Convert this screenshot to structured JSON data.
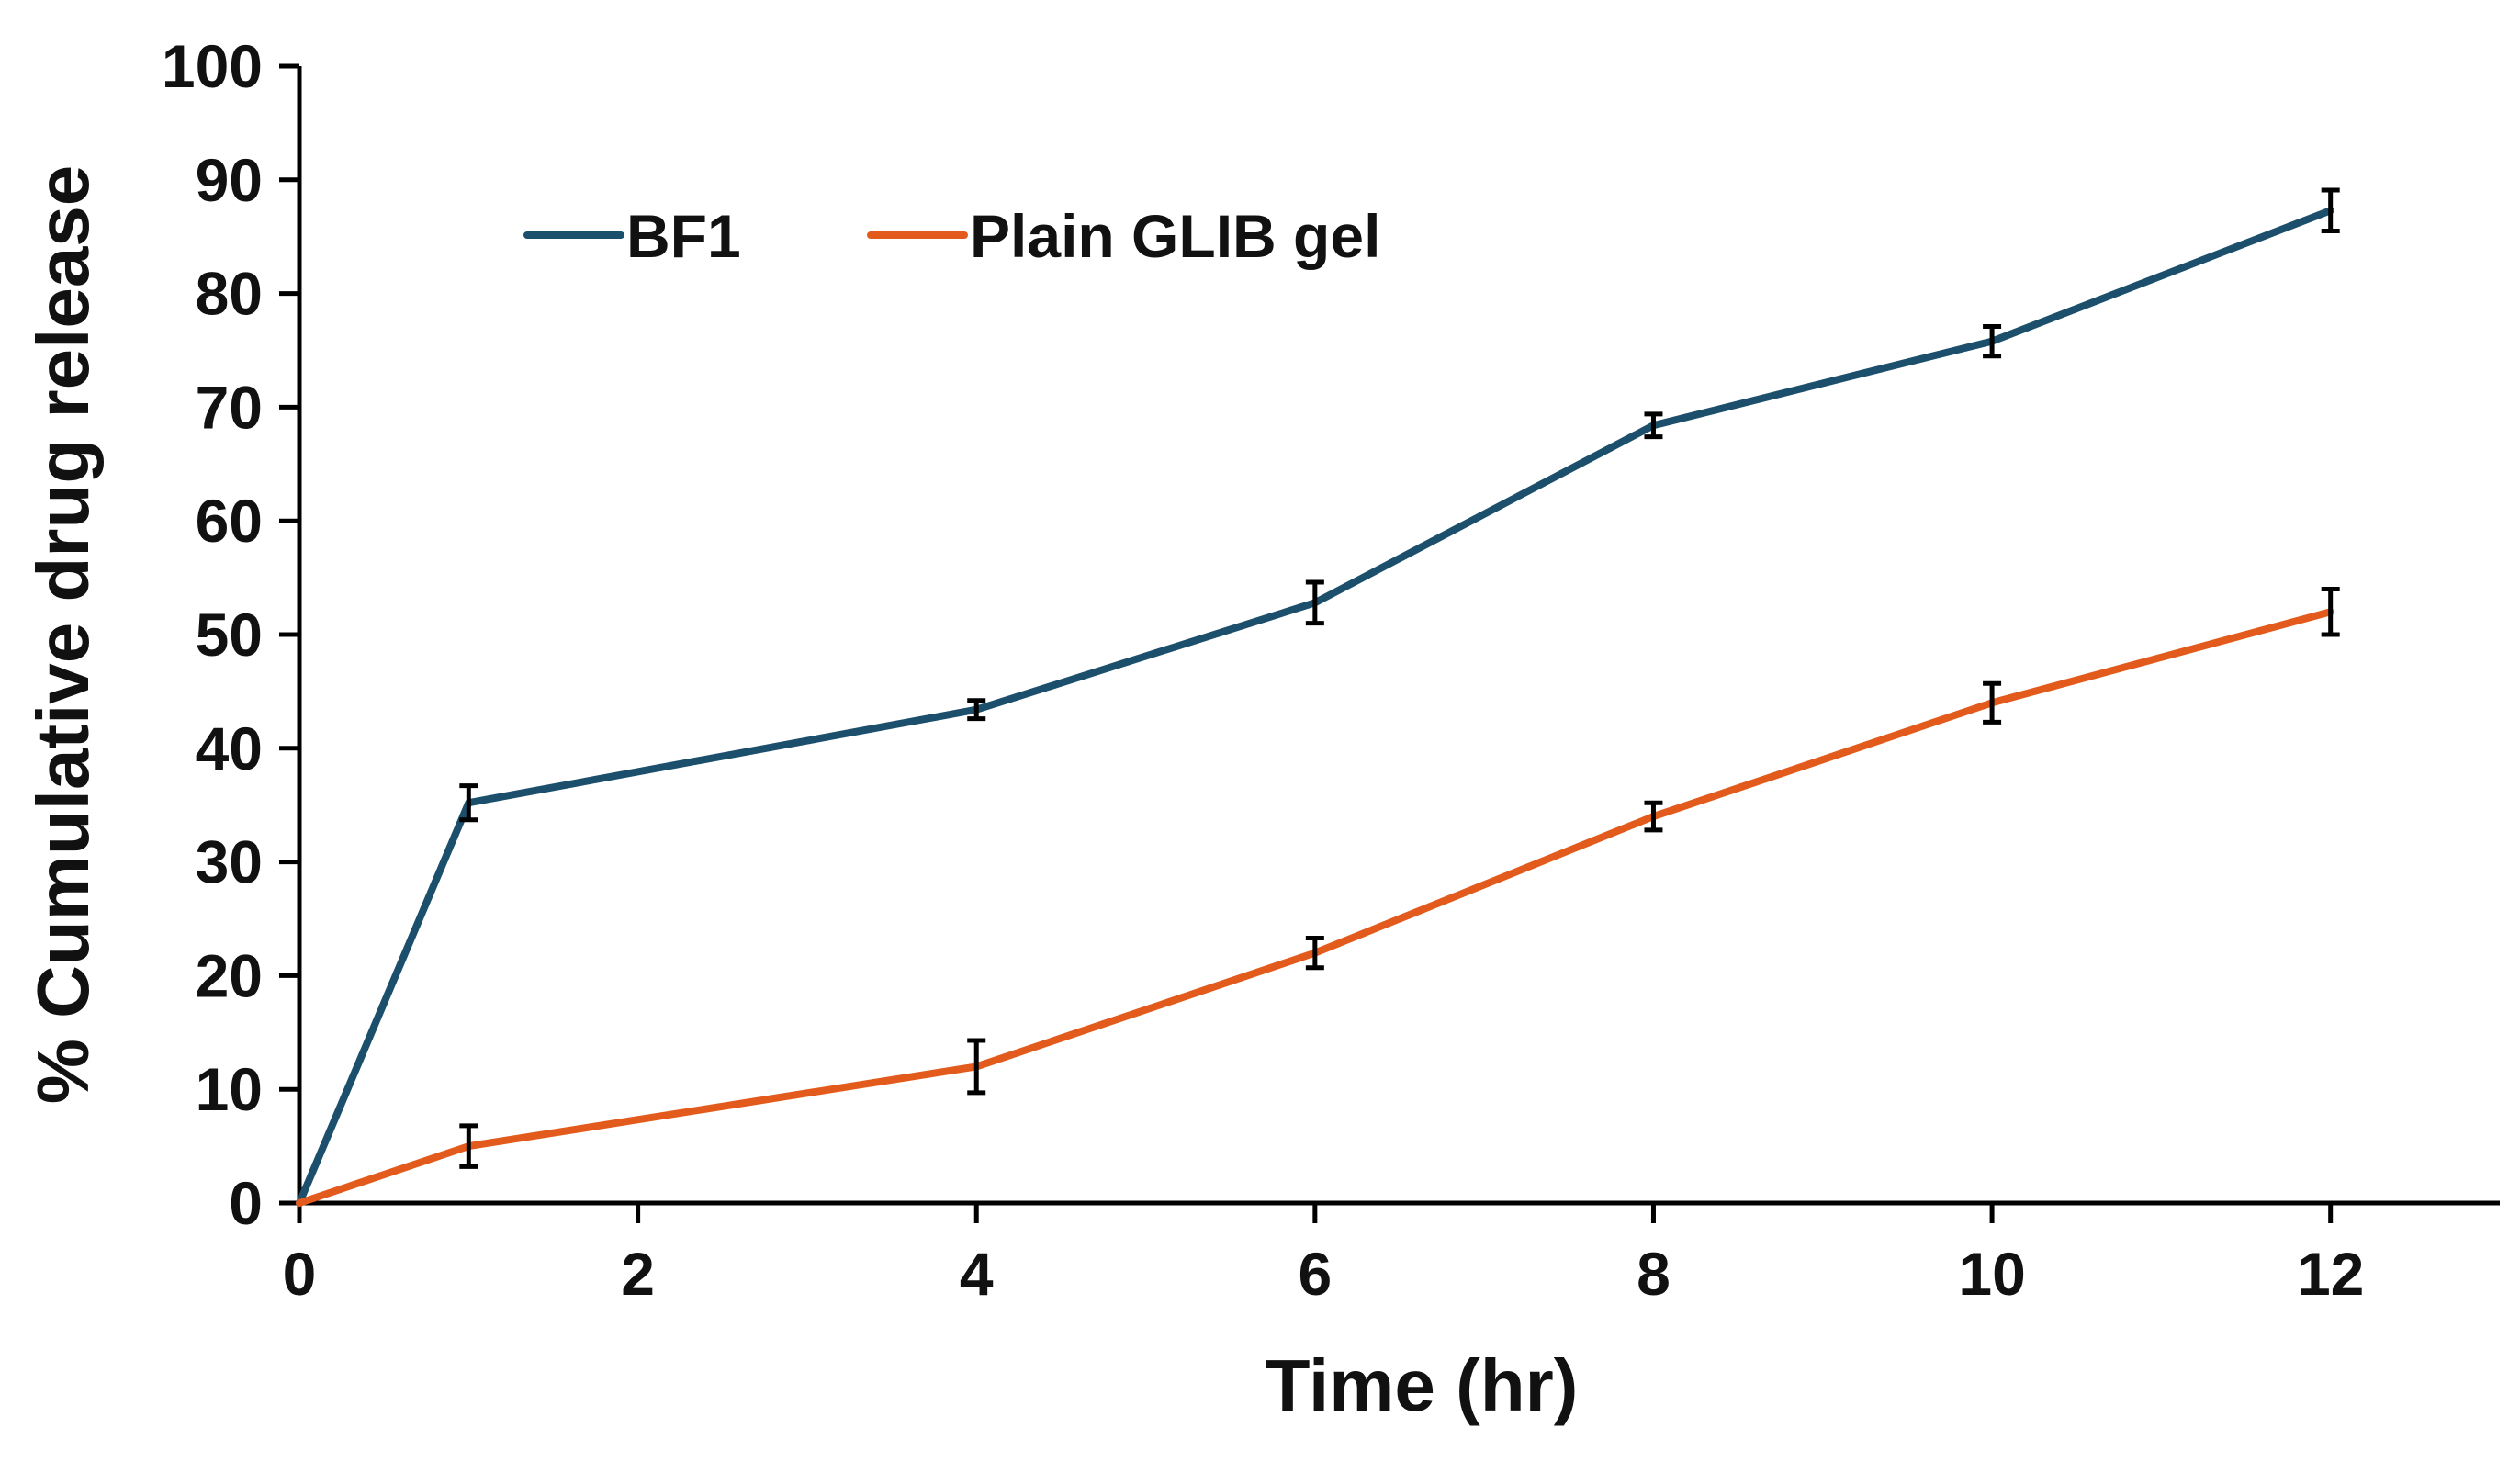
{
  "chart_data": {
    "type": "line",
    "title": "",
    "xlabel": "Time (hr)",
    "ylabel": "% Cumulative drug release",
    "xlim": [
      0,
      13
    ],
    "ylim": [
      0,
      100
    ],
    "xticks": [
      0,
      2,
      4,
      6,
      8,
      10,
      12
    ],
    "yticks": [
      0,
      10,
      20,
      30,
      40,
      50,
      60,
      70,
      80,
      90,
      100
    ],
    "grid": false,
    "legend_position": "top-left",
    "series": [
      {
        "name": "BF1",
        "color": "#1b4f6b",
        "x": [
          0,
          1,
          4,
          6,
          8,
          10,
          12
        ],
        "y": [
          0,
          35.2,
          43.4,
          52.8,
          68.4,
          75.8,
          87.3
        ],
        "error": [
          0,
          1.5,
          0.8,
          1.8,
          1.0,
          1.3,
          1.8
        ]
      },
      {
        "name": "Plain GLIB gel",
        "color": "#e35b1c",
        "x": [
          0,
          1,
          4,
          6,
          8,
          10,
          12
        ],
        "y": [
          0,
          5.0,
          12.0,
          22.0,
          34.0,
          44.0,
          52.0
        ],
        "error": [
          0,
          1.8,
          2.3,
          1.3,
          1.2,
          1.7,
          2.0
        ]
      }
    ]
  }
}
